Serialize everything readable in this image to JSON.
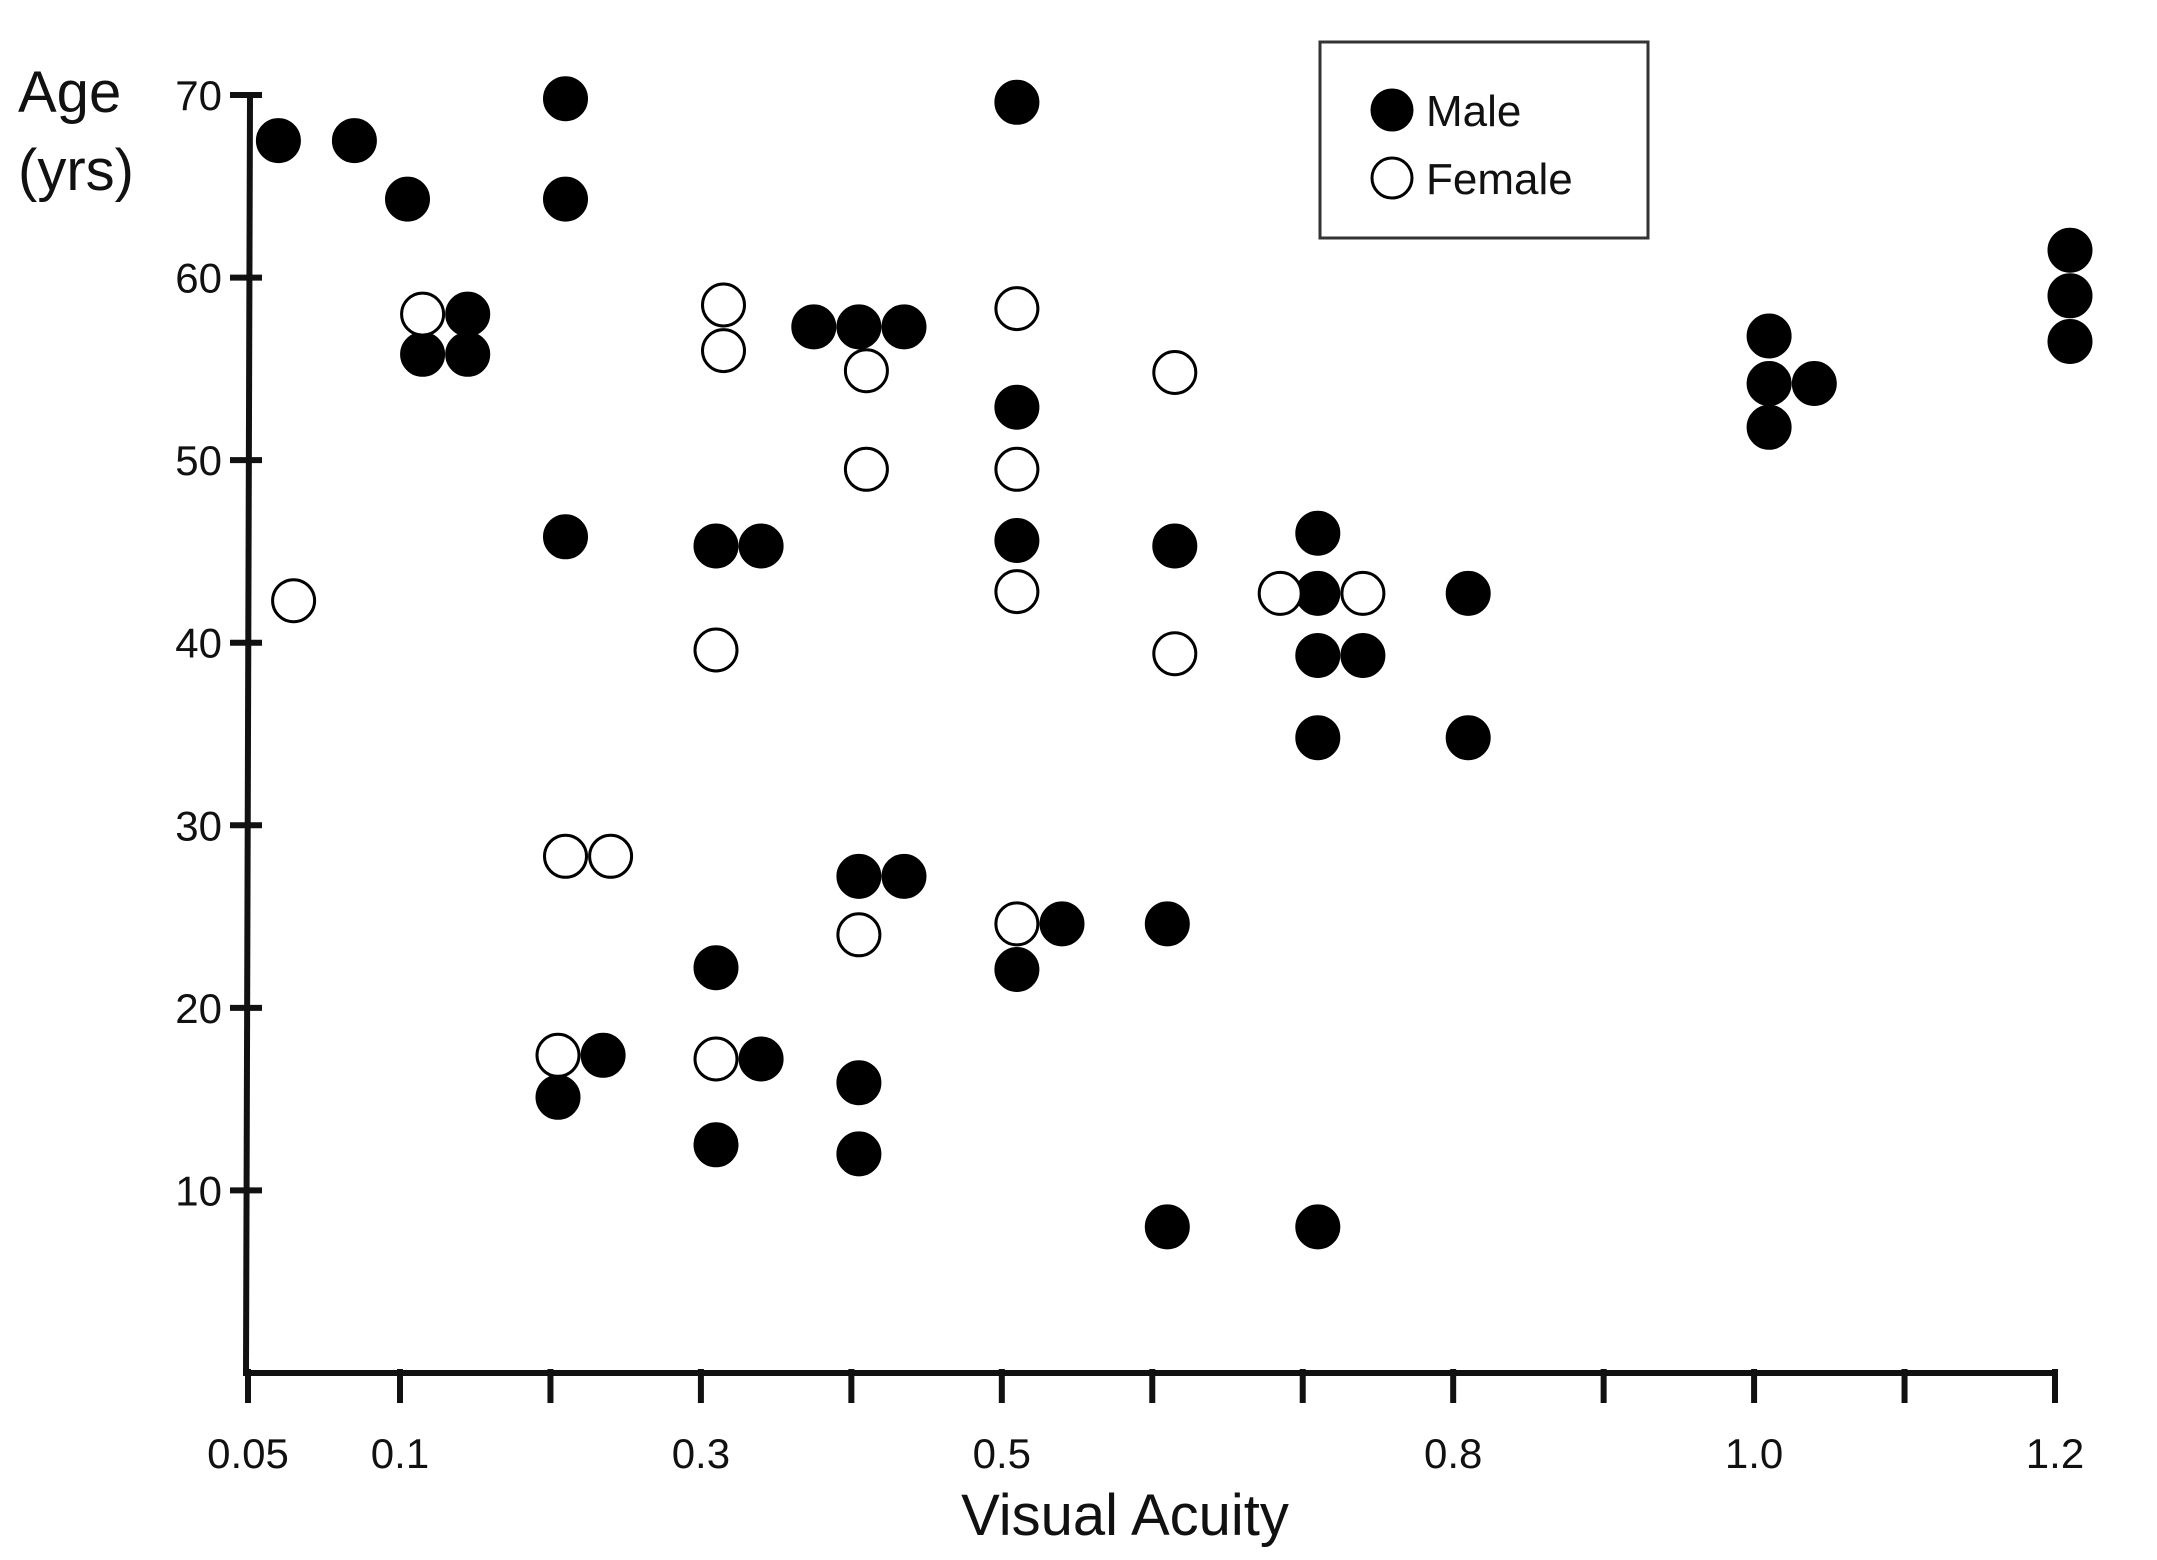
{
  "chart_data": {
    "type": "scatter",
    "title": "",
    "xlabel": "Visual Acuity",
    "ylabel_line1": "Age",
    "ylabel_line2": "(yrs)",
    "x_ticks": [
      {
        "value": 0.05,
        "label": "0.05"
      },
      {
        "value": 0.1,
        "label": "0.1"
      },
      {
        "value": 0.2,
        "label": ""
      },
      {
        "value": 0.3,
        "label": "0.3"
      },
      {
        "value": 0.4,
        "label": ""
      },
      {
        "value": 0.5,
        "label": "0.5"
      },
      {
        "value": 0.6,
        "label": ""
      },
      {
        "value": 0.7,
        "label": ""
      },
      {
        "value": 0.8,
        "label": "0.8"
      },
      {
        "value": 0.9,
        "label": ""
      },
      {
        "value": 1.0,
        "label": "1.0"
      },
      {
        "value": 1.1,
        "label": ""
      },
      {
        "value": 1.2,
        "label": "1.2"
      }
    ],
    "y_ticks": [
      {
        "value": 10,
        "label": "10"
      },
      {
        "value": 20,
        "label": "20"
      },
      {
        "value": 30,
        "label": "30"
      },
      {
        "value": 40,
        "label": "40"
      },
      {
        "value": 50,
        "label": "50"
      },
      {
        "value": 60,
        "label": "60"
      },
      {
        "value": 70,
        "label": "70"
      }
    ],
    "ylim": [
      0,
      70
    ],
    "grid": false,
    "legend": {
      "position": "top-right"
    },
    "series": [
      {
        "name": "Male",
        "marker": "filled-circle",
        "color": "#000000",
        "points": [
          {
            "x": 0.06,
            "y": 67.5
          },
          {
            "x": 0.085,
            "y": 67.5
          },
          {
            "x": 0.105,
            "y": 64.3
          },
          {
            "x": 0.115,
            "y": 55.8
          },
          {
            "x": 0.145,
            "y": 58.0
          },
          {
            "x": 0.145,
            "y": 55.8
          },
          {
            "x": 0.21,
            "y": 69.8
          },
          {
            "x": 0.21,
            "y": 64.3
          },
          {
            "x": 0.21,
            "y": 45.8
          },
          {
            "x": 0.205,
            "y": 15.1
          },
          {
            "x": 0.235,
            "y": 17.4
          },
          {
            "x": 0.31,
            "y": 45.3
          },
          {
            "x": 0.34,
            "y": 45.3
          },
          {
            "x": 0.31,
            "y": 22.2
          },
          {
            "x": 0.34,
            "y": 17.2
          },
          {
            "x": 0.31,
            "y": 12.5
          },
          {
            "x": 0.375,
            "y": 57.3
          },
          {
            "x": 0.405,
            "y": 57.3
          },
          {
            "x": 0.435,
            "y": 57.3
          },
          {
            "x": 0.405,
            "y": 27.2
          },
          {
            "x": 0.435,
            "y": 27.2
          },
          {
            "x": 0.405,
            "y": 15.9
          },
          {
            "x": 0.405,
            "y": 12.0
          },
          {
            "x": 0.51,
            "y": 69.6
          },
          {
            "x": 0.51,
            "y": 52.9
          },
          {
            "x": 0.51,
            "y": 45.6
          },
          {
            "x": 0.54,
            "y": 24.6
          },
          {
            "x": 0.51,
            "y": 22.1
          },
          {
            "x": 0.615,
            "y": 45.3
          },
          {
            "x": 0.61,
            "y": 24.6
          },
          {
            "x": 0.61,
            "y": 8.0
          },
          {
            "x": 0.71,
            "y": 46.0
          },
          {
            "x": 0.71,
            "y": 42.7
          },
          {
            "x": 0.71,
            "y": 39.3
          },
          {
            "x": 0.74,
            "y": 39.3
          },
          {
            "x": 0.71,
            "y": 34.8
          },
          {
            "x": 0.71,
            "y": 8.0
          },
          {
            "x": 0.81,
            "y": 42.7
          },
          {
            "x": 0.81,
            "y": 34.8
          },
          {
            "x": 1.01,
            "y": 56.8
          },
          {
            "x": 1.01,
            "y": 54.2
          },
          {
            "x": 1.04,
            "y": 54.2
          },
          {
            "x": 1.01,
            "y": 51.8
          },
          {
            "x": 1.21,
            "y": 61.5
          },
          {
            "x": 1.21,
            "y": 59.0
          },
          {
            "x": 1.21,
            "y": 56.5
          }
        ]
      },
      {
        "name": "Female",
        "marker": "open-circle",
        "color": "#000000",
        "points": [
          {
            "x": 0.065,
            "y": 42.3
          },
          {
            "x": 0.115,
            "y": 58.0
          },
          {
            "x": 0.21,
            "y": 28.3
          },
          {
            "x": 0.24,
            "y": 28.3
          },
          {
            "x": 0.205,
            "y": 17.4
          },
          {
            "x": 0.315,
            "y": 58.5
          },
          {
            "x": 0.315,
            "y": 56.0
          },
          {
            "x": 0.31,
            "y": 39.6
          },
          {
            "x": 0.31,
            "y": 17.2
          },
          {
            "x": 0.41,
            "y": 54.9
          },
          {
            "x": 0.41,
            "y": 49.5
          },
          {
            "x": 0.405,
            "y": 24.0
          },
          {
            "x": 0.51,
            "y": 58.3
          },
          {
            "x": 0.51,
            "y": 49.5
          },
          {
            "x": 0.51,
            "y": 42.8
          },
          {
            "x": 0.51,
            "y": 24.6
          },
          {
            "x": 0.615,
            "y": 54.8
          },
          {
            "x": 0.615,
            "y": 39.4
          },
          {
            "x": 0.685,
            "y": 42.7
          },
          {
            "x": 0.74,
            "y": 42.7
          }
        ]
      }
    ]
  }
}
